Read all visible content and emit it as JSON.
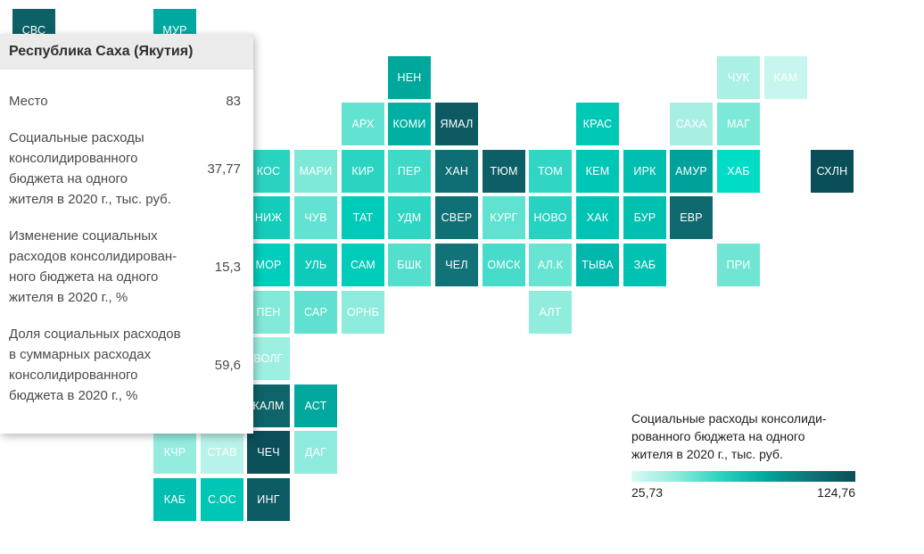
{
  "tooltip": {
    "title": "Республика Саха (Якутия)",
    "rows": [
      {
        "label": "Место",
        "value": "83"
      },
      {
        "label": "Социальные расходы\nконсолидированного\nбюджета на одного\nжителя в 2020 г., тыс. руб.",
        "value": "37,77"
      },
      {
        "label": "Изменение социальных\nрасходов консолидирован-\nного бюджета на одного\nжителя в 2020 г., %",
        "value": "15,3"
      },
      {
        "label": "Доля социальных расходов\nв суммарных расходах\nконсолидированного\nбюджета в 2020 г., %",
        "value": "59,6"
      }
    ]
  },
  "chart_data": {
    "type": "heatmap",
    "title": "",
    "colorbar": {
      "label": "Социальные расходы консолиди-\nрованного бюджета на одного\nжителя в 2020 г., тыс. руб.",
      "min": "25,73",
      "max": "124,76",
      "gradient": [
        "#d8faf2",
        "#8eebdc",
        "#2ad2c0",
        "#00a89e",
        "#0e7377",
        "#0a4e58"
      ]
    },
    "tiles": [
      {
        "code": "СВС",
        "col": 0,
        "row": 0,
        "color": "#0d6066"
      },
      {
        "code": "МУР",
        "col": 3,
        "row": 0,
        "color": "#00a8a0"
      },
      {
        "code": "НЕН",
        "col": 8,
        "row": 1,
        "color": "#00a89c"
      },
      {
        "code": "ЧУК",
        "col": 15,
        "row": 1,
        "color": "#aaf0e4"
      },
      {
        "code": "КАМ",
        "col": 16,
        "row": 1,
        "color": "#c6f6ed"
      },
      {
        "code": "АРХ",
        "col": 7,
        "row": 2,
        "color": "#62e2d0"
      },
      {
        "code": "КОМИ",
        "col": 8,
        "row": 2,
        "color": "#00b0a4"
      },
      {
        "code": "ЯМАЛ",
        "col": 9,
        "row": 2,
        "color": "#0d5a62"
      },
      {
        "code": "КРАС",
        "col": 12,
        "row": 2,
        "color": "#00c8b6"
      },
      {
        "code": "САХА",
        "col": 14,
        "row": 2,
        "color": "#a8efe3"
      },
      {
        "code": "МАГ",
        "col": 15,
        "row": 2,
        "color": "#7ce8d7"
      },
      {
        "code": "КОС",
        "col": 5,
        "row": 3,
        "color": "#2ad2c0"
      },
      {
        "code": "МАРИ",
        "col": 6,
        "row": 3,
        "color": "#7ee9d8"
      },
      {
        "code": "КИР",
        "col": 7,
        "row": 3,
        "color": "#2bd3c1"
      },
      {
        "code": "ПЕР",
        "col": 8,
        "row": 3,
        "color": "#3fd9c7"
      },
      {
        "code": "ХАН",
        "col": 9,
        "row": 3,
        "color": "#0f6e73"
      },
      {
        "code": "ТЮМ",
        "col": 10,
        "row": 3,
        "color": "#0c5f66"
      },
      {
        "code": "ТОМ",
        "col": 11,
        "row": 3,
        "color": "#30d5c3"
      },
      {
        "code": "КЕМ",
        "col": 12,
        "row": 3,
        "color": "#00c6b5"
      },
      {
        "code": "ИРК",
        "col": 13,
        "row": 3,
        "color": "#00beb0"
      },
      {
        "code": "АМУР",
        "col": 14,
        "row": 3,
        "color": "#00a19a"
      },
      {
        "code": "ХАБ",
        "col": 15,
        "row": 3,
        "color": "#00dcc6"
      },
      {
        "code": "СХЛН",
        "col": 17,
        "row": 3,
        "color": "#0a4e58"
      },
      {
        "code": "НИЖ",
        "col": 5,
        "row": 4,
        "color": "#14ccba"
      },
      {
        "code": "ЧУВ",
        "col": 6,
        "row": 4,
        "color": "#62e2d0"
      },
      {
        "code": "ТАТ",
        "col": 7,
        "row": 4,
        "color": "#00cab8"
      },
      {
        "code": "УДМ",
        "col": 8,
        "row": 4,
        "color": "#2ed5c3"
      },
      {
        "code": "СВЕР",
        "col": 9,
        "row": 4,
        "color": "#0f7075"
      },
      {
        "code": "КУРГ",
        "col": 10,
        "row": 4,
        "color": "#5fe2d0"
      },
      {
        "code": "НОВО",
        "col": 11,
        "row": 4,
        "color": "#28d2c0"
      },
      {
        "code": "ХАК",
        "col": 12,
        "row": 4,
        "color": "#00c4b3"
      },
      {
        "code": "БУР",
        "col": 13,
        "row": 4,
        "color": "#00c0b0"
      },
      {
        "code": "ЕВР",
        "col": 14,
        "row": 4,
        "color": "#0e6a6e"
      },
      {
        "code": "МОР",
        "col": 5,
        "row": 5,
        "color": "#00cebc"
      },
      {
        "code": "УЛЬ",
        "col": 6,
        "row": 5,
        "color": "#0ecab8"
      },
      {
        "code": "САМ",
        "col": 7,
        "row": 5,
        "color": "#00ccba"
      },
      {
        "code": "БШК",
        "col": 8,
        "row": 5,
        "color": "#54dfcd"
      },
      {
        "code": "ЧЕЛ",
        "col": 9,
        "row": 5,
        "color": "#117277"
      },
      {
        "code": "ОМСК",
        "col": 10,
        "row": 5,
        "color": "#47dcc9"
      },
      {
        "code": "АЛ.К",
        "col": 11,
        "row": 5,
        "color": "#68e4d2"
      },
      {
        "code": "ТЫВА",
        "col": 12,
        "row": 5,
        "color": "#00b7ab"
      },
      {
        "code": "ЗАБ",
        "col": 13,
        "row": 5,
        "color": "#00c2b2"
      },
      {
        "code": "ПРИ",
        "col": 15,
        "row": 5,
        "color": "#70e5d4"
      },
      {
        "code": "ПЕН",
        "col": 5,
        "row": 6,
        "color": "#80e9d8"
      },
      {
        "code": "САР",
        "col": 6,
        "row": 6,
        "color": "#60e1cf"
      },
      {
        "code": "ОРНБ",
        "col": 7,
        "row": 6,
        "color": "#8cebdc"
      },
      {
        "code": "АЛТ",
        "col": 11,
        "row": 6,
        "color": "#90ecdd"
      },
      {
        "code": "ВОЛГ",
        "col": 5,
        "row": 7,
        "color": "#9defe1"
      },
      {
        "code": "КАЛМ",
        "col": 5,
        "row": 8,
        "color": "#0e6468"
      },
      {
        "code": "АСТ",
        "col": 6,
        "row": 8,
        "color": "#00a89e"
      },
      {
        "code": "КЧР",
        "col": 3,
        "row": 9,
        "color": "#94ecde"
      },
      {
        "code": "СТАВ",
        "col": 4,
        "row": 9,
        "color": "#b7f3e9"
      },
      {
        "code": "ЧЕЧ",
        "col": 5,
        "row": 9,
        "color": "#0b4f59"
      },
      {
        "code": "ДАГ",
        "col": 6,
        "row": 9,
        "color": "#8feade"
      },
      {
        "code": "КАБ",
        "col": 3,
        "row": 10,
        "color": "#00bfb0"
      },
      {
        "code": "С.ОС",
        "col": 4,
        "row": 10,
        "color": "#00c6b5"
      },
      {
        "code": "ИНГ",
        "col": 5,
        "row": 10,
        "color": "#0d5c64"
      }
    ]
  }
}
